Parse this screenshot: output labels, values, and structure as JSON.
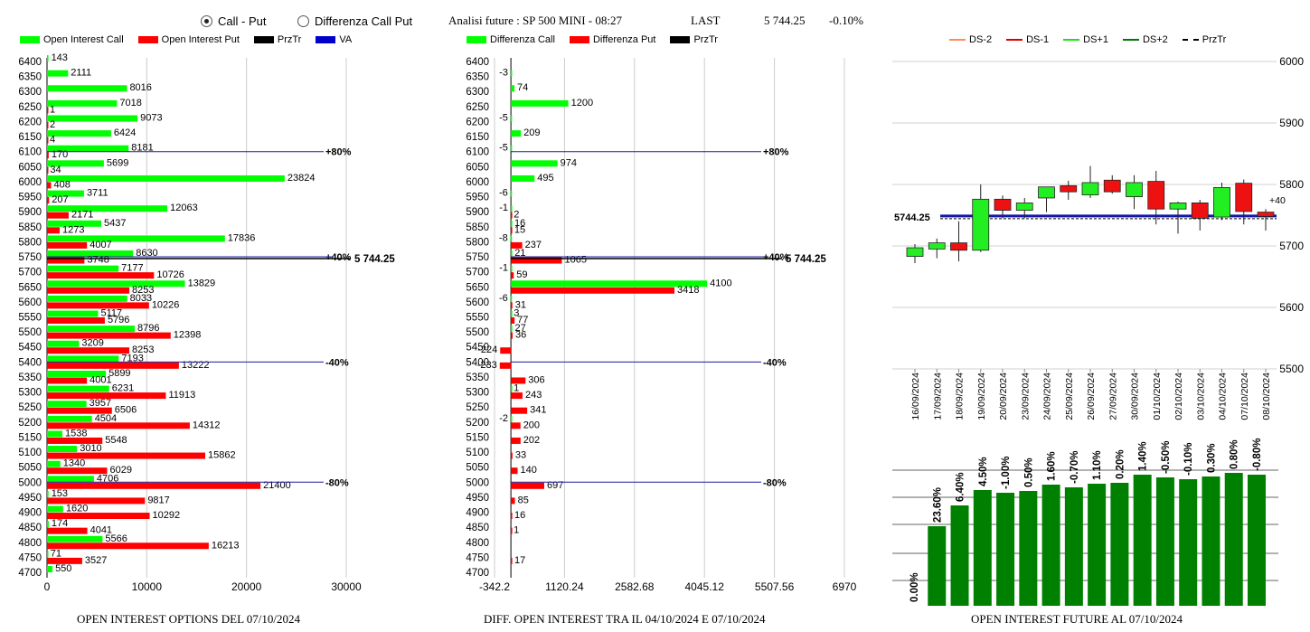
{
  "controls": {
    "mode_call_put": "Call - Put",
    "mode_diff": "Differenza Call Put",
    "title": "Analisi future : SP 500 MINI - 08:27",
    "last_label": "LAST",
    "last_value": "5 744.25",
    "last_change": "-0.10%"
  },
  "legends": {
    "left": [
      {
        "label": "Open Interest Call",
        "color": "#00ff00"
      },
      {
        "label": "Open Interest Put",
        "color": "#ff0000"
      },
      {
        "label": "PrzTr",
        "color": "#000000"
      },
      {
        "label": "VA",
        "color": "#0000cc"
      }
    ],
    "middle": [
      {
        "label": "Differenza Call",
        "color": "#00ff00"
      },
      {
        "label": "Differenza Put",
        "color": "#ff0000"
      },
      {
        "label": "PrzTr",
        "color": "#000000"
      }
    ],
    "right": [
      {
        "label": "DS-2",
        "color": "#ff8c50"
      },
      {
        "label": "DS-1",
        "color": "#dd0000"
      },
      {
        "label": "DS+1",
        "color": "#22dd22"
      },
      {
        "label": "DS+2",
        "color": "#007700"
      },
      {
        "label": "PrzTr",
        "color": "#000000"
      }
    ]
  },
  "captions": {
    "left": "OPEN INTEREST OPTIONS DEL 07/10/2024",
    "middle": "DIFF. OPEN INTEREST TRA IL 04/10/2024 E 07/10/2024",
    "right": "OPEN INTEREST FUTURE AL 07/10/2024"
  },
  "chart_data": [
    {
      "type": "bar",
      "orientation": "horizontal",
      "strikes": [
        6400,
        6350,
        6300,
        6250,
        6200,
        6150,
        6100,
        6050,
        6000,
        5950,
        5900,
        5850,
        5800,
        5750,
        5700,
        5650,
        5600,
        5550,
        5500,
        5450,
        5400,
        5350,
        5300,
        5250,
        5200,
        5150,
        5100,
        5050,
        5000,
        4950,
        4900,
        4850,
        4800,
        4750,
        4700
      ],
      "series": [
        {
          "name": "Open Interest Call",
          "color": "#00ff00",
          "values": [
            143,
            2111,
            8016,
            7018,
            9073,
            6424,
            8181,
            5699,
            23824,
            3711,
            12063,
            5437,
            17836,
            8630,
            7177,
            13829,
            8033,
            5117,
            8796,
            3209,
            7193,
            5899,
            6231,
            3957,
            4504,
            1538,
            3010,
            1340,
            4706,
            153,
            1620,
            174,
            5566,
            71,
            550
          ]
        },
        {
          "name": "Open Interest Put",
          "color": "#ff0000",
          "values": [
            null,
            null,
            null,
            1,
            2,
            4,
            170,
            34,
            408,
            207,
            2171,
            1273,
            4007,
            3748,
            10726,
            8253,
            10226,
            5796,
            12398,
            8253,
            13222,
            4001,
            11913,
            6506,
            14312,
            5548,
            15862,
            6029,
            21400,
            9817,
            10292,
            4041,
            16213,
            3527,
            null
          ]
        }
      ],
      "xticks": [
        "0",
        "10000",
        "20000",
        "30000"
      ],
      "xlim": [
        0,
        30000
      ],
      "levels": [
        {
          "strike": 6100,
          "label": "+80%",
          "color": "#0000cc"
        },
        {
          "strike": 5750,
          "label": "+40%",
          "color": "#0000cc"
        },
        {
          "strike": 5400,
          "label": "-40%",
          "color": "#0000cc"
        },
        {
          "strike": 5000,
          "label": "-80%",
          "color": "#0000cc"
        }
      ],
      "price_line": {
        "strike": 5744.25,
        "label": "5 744.25"
      }
    },
    {
      "type": "bar",
      "orientation": "horizontal",
      "strikes": [
        6400,
        6350,
        6300,
        6250,
        6200,
        6150,
        6100,
        6050,
        6000,
        5950,
        5900,
        5850,
        5800,
        5750,
        5700,
        5650,
        5600,
        5550,
        5500,
        5450,
        5400,
        5350,
        5300,
        5250,
        5200,
        5150,
        5100,
        5050,
        5000,
        4950,
        4900,
        4850,
        4800,
        4750,
        4700
      ],
      "series": [
        {
          "name": "Differenza Call",
          "color": "#00ff00",
          "values": [
            null,
            -3,
            74,
            1200,
            -5,
            209,
            -5,
            974,
            495,
            -6,
            -1,
            16,
            -8,
            21,
            -1,
            4100,
            -6,
            3,
            27,
            null,
            null,
            null,
            1,
            null,
            -2,
            null,
            null,
            null,
            null,
            null,
            null,
            null,
            null,
            null,
            null
          ]
        },
        {
          "name": "Differenza Put",
          "color": "#ff0000",
          "values": [
            null,
            null,
            null,
            null,
            null,
            null,
            null,
            null,
            null,
            null,
            2,
            15,
            237,
            1065,
            59,
            3418,
            31,
            77,
            36,
            -224,
            -233,
            306,
            243,
            341,
            200,
            202,
            33,
            140,
            697,
            85,
            16,
            1,
            null,
            17,
            null
          ]
        }
      ],
      "xticks": [
        "-342.2",
        "1120.24",
        "2582.68",
        "4045.12",
        "5507.56",
        "6970"
      ],
      "xlim": [
        -342.2,
        6970
      ],
      "levels": [
        {
          "strike": 6100,
          "label": "+80%"
        },
        {
          "strike": 5750,
          "label": "+40%"
        },
        {
          "strike": 5400,
          "label": "-40%"
        },
        {
          "strike": 5000,
          "label": "-80%"
        }
      ],
      "price_line": {
        "strike": 5744.25,
        "label": "5 744.25"
      }
    },
    {
      "type": "candlestick",
      "dates": [
        "16/09/2024",
        "17/09/2024",
        "18/09/2024",
        "19/09/2024",
        "20/09/2024",
        "23/09/2024",
        "24/09/2024",
        "25/09/2024",
        "26/09/2024",
        "27/09/2024",
        "30/09/2024",
        "01/10/2024",
        "02/10/2024",
        "03/10/2024",
        "04/10/2024",
        "07/10/2024",
        "08/10/2024"
      ],
      "ohlc": [
        [
          5683,
          5703,
          5672,
          5697
        ],
        [
          5695,
          5712,
          5680,
          5705
        ],
        [
          5705,
          5740,
          5675,
          5693
        ],
        [
          5693,
          5800,
          5690,
          5776
        ],
        [
          5776,
          5782,
          5745,
          5758
        ],
        [
          5758,
          5778,
          5745,
          5770
        ],
        [
          5778,
          5795,
          5755,
          5796
        ],
        [
          5798,
          5806,
          5775,
          5788
        ],
        [
          5783,
          5830,
          5778,
          5803
        ],
        [
          5807,
          5815,
          5785,
          5788
        ],
        [
          5780,
          5815,
          5760,
          5803
        ],
        [
          5805,
          5822,
          5735,
          5760
        ],
        [
          5760,
          5772,
          5720,
          5770
        ],
        [
          5770,
          5775,
          5725,
          5745
        ],
        [
          5747,
          5803,
          5742,
          5795
        ],
        [
          5802,
          5808,
          5735,
          5756
        ],
        [
          5755,
          5760,
          5725,
          5748
        ]
      ],
      "ylim": [
        5500,
        6000
      ],
      "yticks": [
        "6000",
        "5900",
        "5800",
        "5700",
        "5600",
        "5500"
      ],
      "last_price": {
        "value": 5744.25,
        "label": "5744.25"
      },
      "right_marker": "+40"
    },
    {
      "type": "bar",
      "categories": [
        "16/09/2024",
        "17/09/2024",
        "18/09/2024",
        "19/09/2024",
        "20/09/2024",
        "23/09/2024",
        "24/09/2024",
        "25/09/2024",
        "26/09/2024",
        "27/09/2024",
        "30/09/2024",
        "01/10/2024",
        "02/10/2024",
        "03/10/2024",
        "04/10/2024",
        "07/10/2024"
      ],
      "values": [
        0,
        88,
        111,
        128,
        125,
        127,
        134,
        131,
        135,
        136,
        145,
        142,
        140,
        143,
        147,
        145
      ],
      "labels": [
        "0.00%",
        "23.60%",
        "6.40%",
        "4.50%",
        "-1.00%",
        "0.50%",
        "1.60%",
        "-0.70%",
        "1.10%",
        "0.20%",
        "1.40%",
        "-0.50%",
        "-0.10%",
        "0.30%",
        "0.80%",
        "-0.80%"
      ],
      "color": "#008000"
    }
  ]
}
